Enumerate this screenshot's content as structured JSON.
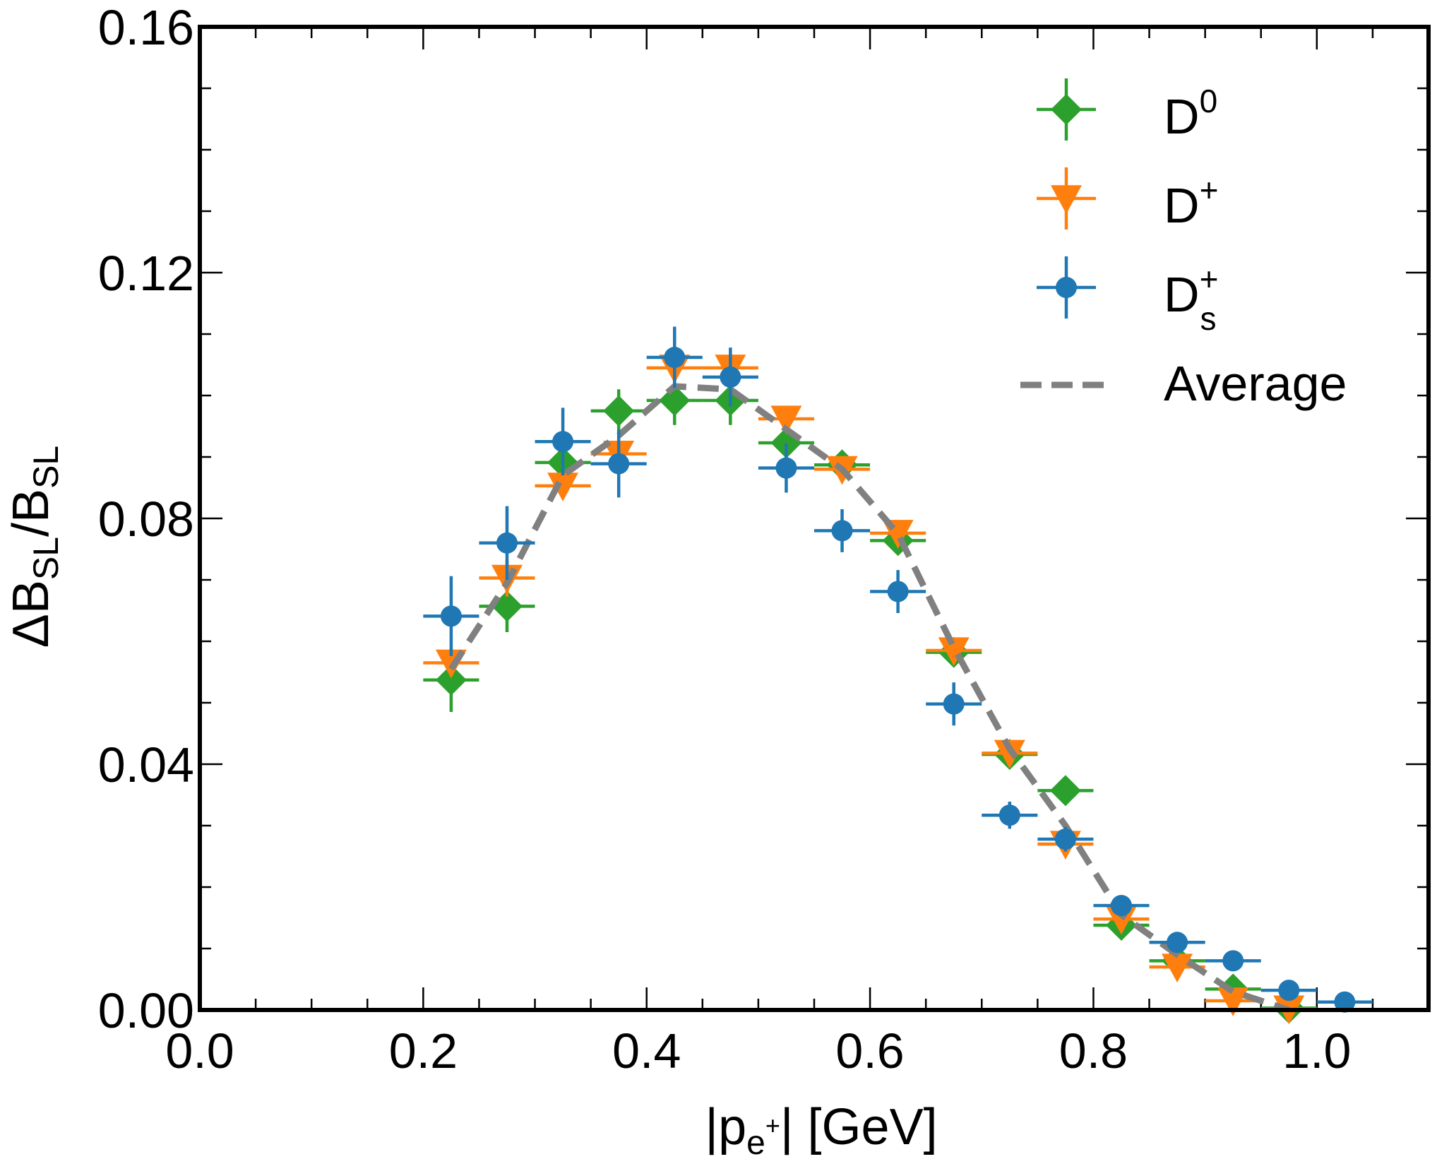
{
  "chart_data": {
    "type": "scatter",
    "title": "",
    "xlabel": "|p_e+| [GeV]",
    "ylabel": "ΔB_SL/B_SL",
    "xlim": [
      0.0,
      1.1
    ],
    "ylim": [
      0.0,
      0.16
    ],
    "x_ticks": [
      0.0,
      0.2,
      0.4,
      0.6,
      0.8,
      1.0
    ],
    "x_tick_labels": [
      "0.0",
      "0.2",
      "0.4",
      "0.6",
      "0.8",
      "1.0"
    ],
    "y_ticks": [
      0.0,
      0.04,
      0.08,
      0.12,
      0.16
    ],
    "y_tick_labels": [
      "0.00",
      "0.04",
      "0.08",
      "0.12",
      "0.16"
    ],
    "x_minor_step": 0.05,
    "y_minor_step": 0.01,
    "grid": false,
    "legend_position": "top-right",
    "bin_half_width": 0.025,
    "series": [
      {
        "name": "D0",
        "legend_main": "D",
        "legend_sup": "0",
        "legend_sub": "",
        "marker": "diamond",
        "color": "#2ca02c",
        "x": [
          0.225,
          0.275,
          0.325,
          0.375,
          0.425,
          0.475,
          0.525,
          0.575,
          0.625,
          0.675,
          0.725,
          0.775,
          0.825,
          0.875,
          0.925,
          0.975
        ],
        "y": [
          0.0537,
          0.0657,
          0.0891,
          0.0975,
          0.0992,
          0.0992,
          0.0923,
          0.0887,
          0.0764,
          0.0582,
          0.0416,
          0.0357,
          0.0138,
          0.008,
          0.0034,
          0.0003
        ],
        "yerr": [
          0.0052,
          0.0042,
          0.003,
          0.0035,
          0.004,
          0.004,
          0.0025,
          0.0022,
          0.0018,
          0.0016,
          0.001,
          0.001,
          0.0008,
          0.0005,
          0.0003,
          0.0002
        ]
      },
      {
        "name": "D+",
        "legend_main": "D",
        "legend_sup": "+",
        "legend_sub": "",
        "marker": "triangle-down",
        "color": "#ff7f0e",
        "x": [
          0.225,
          0.275,
          0.325,
          0.375,
          0.425,
          0.475,
          0.525,
          0.575,
          0.625,
          0.675,
          0.725,
          0.775,
          0.825,
          0.875,
          0.925,
          0.975
        ],
        "y": [
          0.0565,
          0.0703,
          0.0853,
          0.0905,
          0.1045,
          0.1045,
          0.0962,
          0.088,
          0.0776,
          0.0585,
          0.0418,
          0.027,
          0.0148,
          0.007,
          0.0015,
          0.0002
        ],
        "yerr": [
          0.002,
          0.003,
          0.0015,
          0.002,
          0.0025,
          0.0015,
          0.002,
          0.0015,
          0.0012,
          0.001,
          0.0008,
          0.0008,
          0.0005,
          0.0003,
          0.0002,
          0.0001
        ]
      },
      {
        "name": "Ds+",
        "legend_main": "D",
        "legend_sup": "+",
        "legend_sub": "s",
        "marker": "circle",
        "color": "#1f77b4",
        "x": [
          0.225,
          0.275,
          0.325,
          0.375,
          0.425,
          0.475,
          0.525,
          0.575,
          0.625,
          0.675,
          0.725,
          0.775,
          0.825,
          0.875,
          0.925,
          0.975,
          1.025
        ],
        "y": [
          0.0641,
          0.076,
          0.0925,
          0.0889,
          0.1062,
          0.103,
          0.0882,
          0.078,
          0.0681,
          0.0498,
          0.0317,
          0.0278,
          0.017,
          0.011,
          0.008,
          0.0032,
          0.0013
        ],
        "yerr": [
          0.0065,
          0.006,
          0.0055,
          0.0055,
          0.005,
          0.0048,
          0.004,
          0.0035,
          0.0035,
          0.0035,
          0.0022,
          0.002,
          0.0015,
          0.0012,
          0.0,
          0.0,
          0.0
        ]
      },
      {
        "name": "Average",
        "legend_main": "Average",
        "legend_sup": "",
        "legend_sub": "",
        "marker": "dashed-line",
        "color": "#808080",
        "x": [
          0.225,
          0.275,
          0.325,
          0.375,
          0.425,
          0.475,
          0.525,
          0.575,
          0.625,
          0.675,
          0.725,
          0.775,
          0.825,
          0.875,
          0.925,
          0.975
        ],
        "y": [
          0.0555,
          0.0695,
          0.087,
          0.0935,
          0.1015,
          0.101,
          0.0945,
          0.088,
          0.0775,
          0.059,
          0.0425,
          0.03,
          0.0155,
          0.009,
          0.003,
          0.0
        ]
      }
    ]
  }
}
